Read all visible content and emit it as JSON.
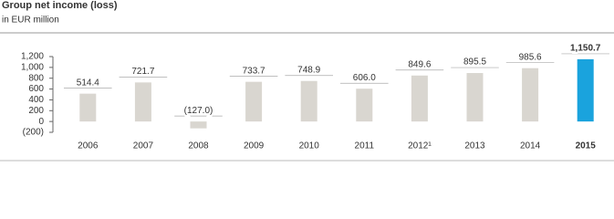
{
  "chart_data": {
    "type": "bar",
    "title": "Group net income (loss)",
    "subtitle": "in EUR million",
    "categories": [
      "2006",
      "2007",
      "2008",
      "2009",
      "2010",
      "2011",
      "2012¹",
      "2013",
      "2014",
      "2015"
    ],
    "values": [
      514.4,
      721.7,
      -127.0,
      733.7,
      748.9,
      606.0,
      849.6,
      895.5,
      985.6,
      1150.7
    ],
    "value_labels": [
      "514.4",
      "721.7",
      "(127.0)",
      "733.7",
      "748.9",
      "606.0",
      "849.6",
      "895.5",
      "985.6",
      "1,150.7"
    ],
    "colors": [
      "#d9d6d0",
      "#d9d6d0",
      "#d9d6d0",
      "#d9d6d0",
      "#d9d6d0",
      "#d9d6d0",
      "#d9d6d0",
      "#d9d6d0",
      "#d9d6d0",
      "#1aa3dd"
    ],
    "ylim": [
      -200,
      1200
    ],
    "yticks": [
      {
        "value": 1200,
        "label": "1,200"
      },
      {
        "value": 1000,
        "label": "1,000"
      },
      800,
      600,
      400,
      200,
      0,
      {
        "value": -200,
        "label": "(200)"
      }
    ]
  }
}
